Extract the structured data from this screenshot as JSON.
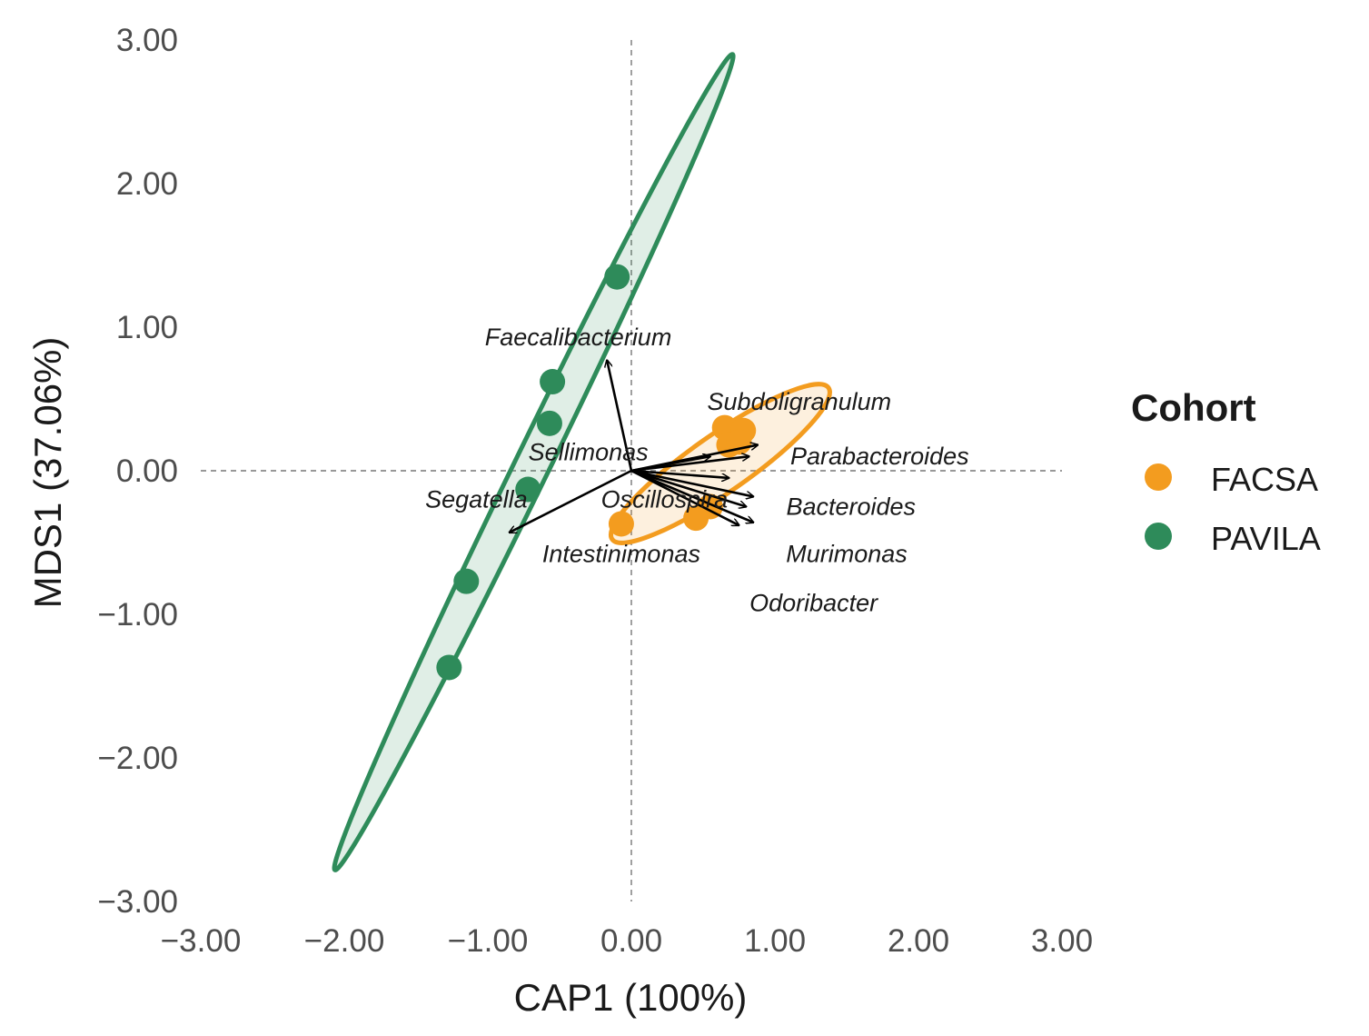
{
  "chart_data": {
    "type": "scatter",
    "xlabel": "CAP1 (100%)",
    "ylabel": "MDS1 (37.06%)",
    "xlim": [
      -3.0,
      3.0
    ],
    "ylim": [
      -3.0,
      3.0
    ],
    "x_ticks": [
      "−3.00",
      "−2.00",
      "−1.00",
      "0.00",
      "1.00",
      "2.00",
      "3.00"
    ],
    "y_ticks": [
      "3.00",
      "2.00",
      "1.00",
      "0.00",
      "−1.00",
      "−2.00",
      "−3.00"
    ],
    "grid": false,
    "reference_lines": [
      0,
      0
    ],
    "legend": {
      "title": "Cohort",
      "position": "right",
      "entries": [
        {
          "label": "FACSA",
          "color": "#F39C1F"
        },
        {
          "label": "PAVILA",
          "color": "#2E8B5A"
        }
      ]
    },
    "series": [
      {
        "name": "FACSA",
        "color": "#F39C1F",
        "points": [
          {
            "x": 0.65,
            "y": 0.3
          },
          {
            "x": 0.72,
            "y": 0.25
          },
          {
            "x": 0.78,
            "y": 0.28
          },
          {
            "x": 0.68,
            "y": 0.18
          },
          {
            "x": 0.75,
            "y": 0.2
          },
          {
            "x": 0.45,
            "y": -0.33
          },
          {
            "x": 0.55,
            "y": -0.25
          },
          {
            "x": -0.07,
            "y": -0.37
          }
        ],
        "ellipse": {
          "cx": 0.62,
          "cy": 0.05,
          "rx": 0.92,
          "ry": 0.2,
          "angle_deg": 35
        }
      },
      {
        "name": "PAVILA",
        "color": "#2E8B5A",
        "points": [
          {
            "x": -0.1,
            "y": 1.35
          },
          {
            "x": -0.55,
            "y": 0.62
          },
          {
            "x": -0.57,
            "y": 0.33
          },
          {
            "x": -0.72,
            "y": -0.13
          },
          {
            "x": -1.15,
            "y": -0.77
          },
          {
            "x": -1.27,
            "y": -1.37
          }
        ],
        "ellipse": {
          "cx": -0.68,
          "cy": 0.06,
          "rx": 3.16,
          "ry": 0.12,
          "angle_deg": 64
        }
      }
    ],
    "vectors": [
      {
        "label": "Faecalibacterium",
        "x": -0.17,
        "y": 0.77,
        "label_x": -0.37,
        "label_y": 0.93
      },
      {
        "label": "Subdoligranulum",
        "x": 0.82,
        "y": 0.1,
        "label_x": 1.17,
        "label_y": 0.48
      },
      {
        "label": "Sellimonas",
        "x": 0.55,
        "y": 0.1,
        "label_x": -0.3,
        "label_y": 0.13
      },
      {
        "label": "Parabacteroides",
        "x": 0.88,
        "y": 0.18,
        "label_x": 1.73,
        "label_y": 0.1
      },
      {
        "label": "Oscillospira",
        "x": 0.68,
        "y": -0.05,
        "label_x": 0.23,
        "label_y": -0.2
      },
      {
        "label": "Bacteroides",
        "x": 0.85,
        "y": -0.18,
        "label_x": 1.53,
        "label_y": -0.25
      },
      {
        "label": "Segatella",
        "x": -0.85,
        "y": -0.43,
        "label_x": -1.08,
        "label_y": -0.2
      },
      {
        "label": "Intestinimonas",
        "x": 0.75,
        "y": -0.38,
        "label_x": -0.07,
        "label_y": -0.58
      },
      {
        "label": "Murimonas",
        "x": 0.85,
        "y": -0.36,
        "label_x": 1.5,
        "label_y": -0.58
      },
      {
        "label": "Odoribacter",
        "x": 0.8,
        "y": -0.25,
        "label_x": 1.27,
        "label_y": -0.92
      }
    ]
  }
}
